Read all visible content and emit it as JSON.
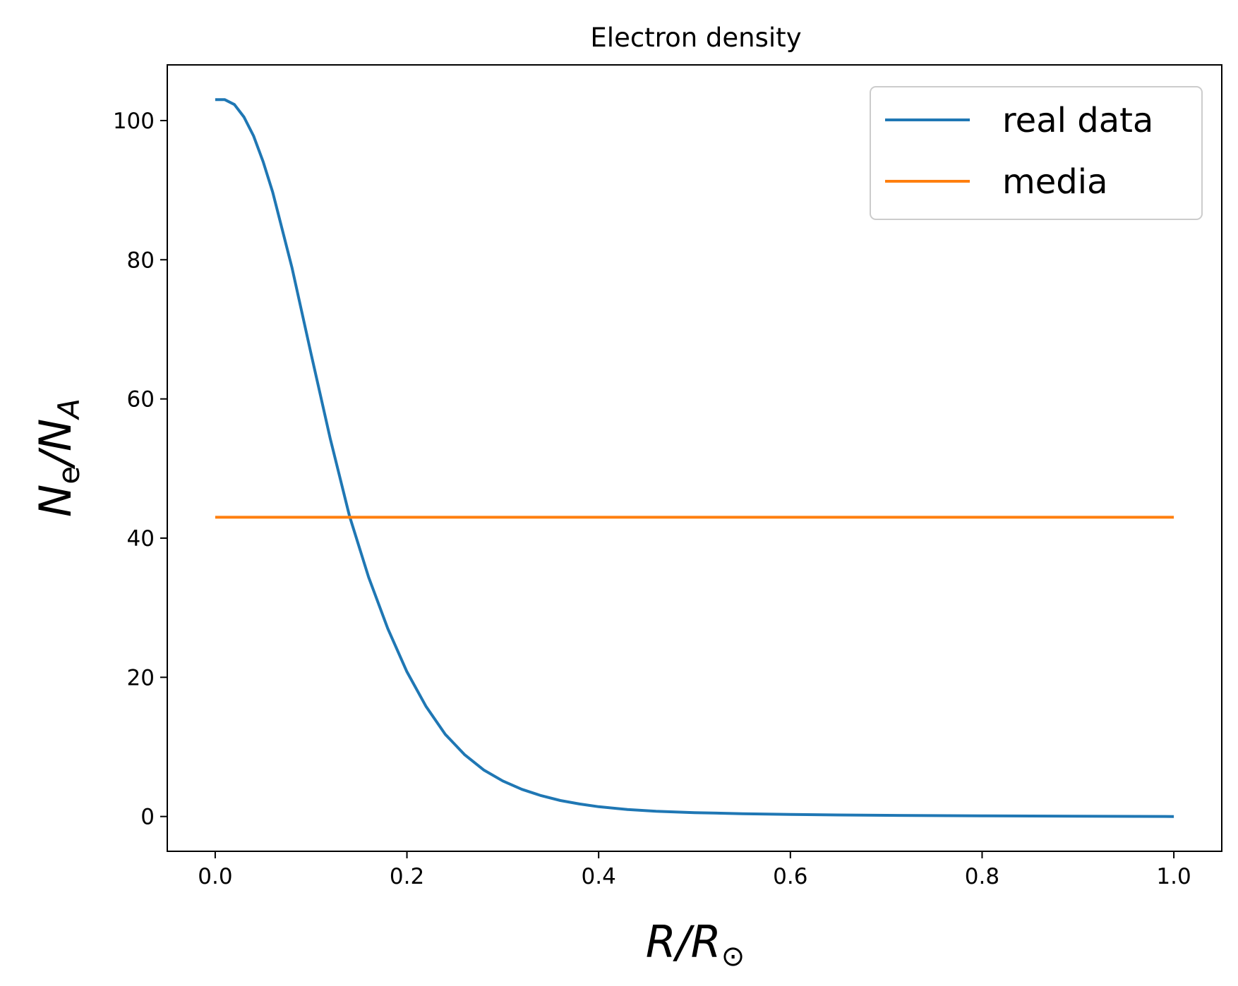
{
  "chart_data": {
    "type": "line",
    "title": "Electron density",
    "xlabel": {
      "main": "R/R",
      "sub": "⊙"
    },
    "ylabel": {
      "n1": "N",
      "sub1": "e",
      "sep": "/N",
      "sub2": "A"
    },
    "xlim": [
      -0.05,
      1.05
    ],
    "ylim": [
      -5,
      108
    ],
    "xticks": [
      0.0,
      0.2,
      0.4,
      0.6,
      0.8,
      1.0
    ],
    "xtick_labels": [
      "0.0",
      "0.2",
      "0.4",
      "0.6",
      "0.8",
      "1.0"
    ],
    "yticks": [
      0,
      20,
      40,
      60,
      80,
      100
    ],
    "ytick_labels": [
      "0",
      "20",
      "40",
      "60",
      "80",
      "100"
    ],
    "grid": false,
    "legend_position": "top-right",
    "series": [
      {
        "name": "real data",
        "color": "#1f77b4",
        "x": [
          0.0,
          0.01,
          0.02,
          0.03,
          0.04,
          0.05,
          0.06,
          0.08,
          0.1,
          0.12,
          0.14,
          0.16,
          0.18,
          0.2,
          0.22,
          0.24,
          0.26,
          0.28,
          0.3,
          0.32,
          0.34,
          0.36,
          0.38,
          0.4,
          0.43,
          0.46,
          0.5,
          0.55,
          0.6,
          0.65,
          0.7,
          0.8,
          0.9,
          1.0
        ],
        "y": [
          103.0,
          103.0,
          102.3,
          100.5,
          97.8,
          94.1,
          89.7,
          78.9,
          66.5,
          54.3,
          43.2,
          34.4,
          27.0,
          20.8,
          15.8,
          11.8,
          8.9,
          6.7,
          5.1,
          3.9,
          3.0,
          2.3,
          1.8,
          1.4,
          1.0,
          0.75,
          0.55,
          0.4,
          0.3,
          0.22,
          0.17,
          0.1,
          0.05,
          0.0
        ]
      },
      {
        "name": "media",
        "color": "#ff7f0e",
        "x": [
          0.0,
          1.0
        ],
        "y": [
          43.0,
          43.0
        ]
      }
    ]
  }
}
